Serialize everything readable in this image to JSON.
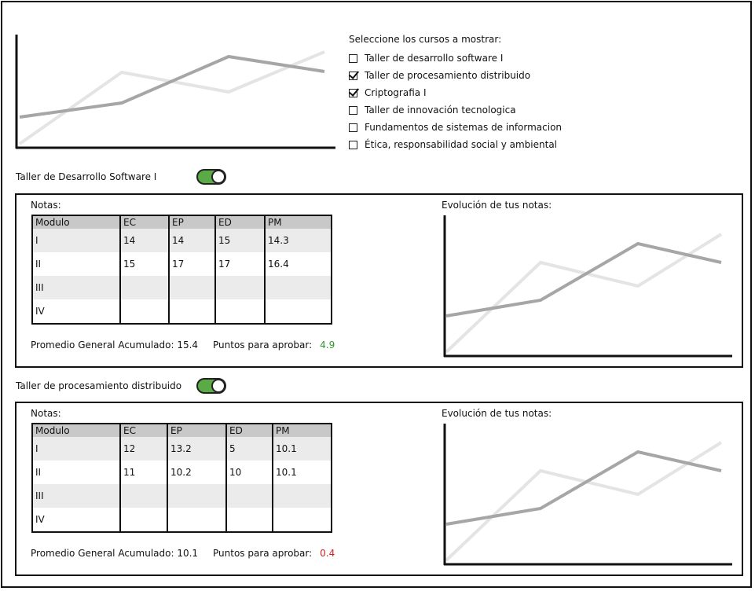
{
  "selector": {
    "title": "Seleccione los cursos a mostrar:",
    "options": [
      {
        "label": "Taller de desarrollo software I",
        "checked": false
      },
      {
        "label": "Taller de procesamiento distribuido",
        "checked": true
      },
      {
        "label": "Criptografia I",
        "checked": true
      },
      {
        "label": "Taller de innovación tecnologica",
        "checked": false
      },
      {
        "label": "Fundamentos de sistemas de informacion",
        "checked": false
      },
      {
        "label": "Ética, responsabilidad social y ambiental",
        "checked": false
      }
    ]
  },
  "courses": [
    {
      "title": "Taller de Desarrollo Software I",
      "toggle_on": true,
      "notes_label": "Notas:",
      "chart_label": "Evolución de tus notas:",
      "columns": [
        "Modulo",
        "EC",
        "EP",
        "ED",
        "PM"
      ],
      "rows": [
        [
          "I",
          "14",
          "14",
          "15",
          "14.3"
        ],
        [
          "II",
          "15",
          "17",
          "17",
          "16.4"
        ],
        [
          "III",
          "",
          "",
          "",
          ""
        ],
        [
          "IV",
          "",
          "",
          "",
          ""
        ]
      ],
      "average_label": "Promedio General Acumulado: 15.4",
      "points_label": "Puntos para aprobar:",
      "points_value": "4.9",
      "points_color": "#2e9a2e"
    },
    {
      "title": "Taller de procesamiento distribuido",
      "toggle_on": true,
      "notes_label": "Notas:",
      "chart_label": "Evolución de tus notas:",
      "columns": [
        "Modulo",
        "EC",
        "EP",
        "ED",
        "PM"
      ],
      "rows": [
        [
          "I",
          "12",
          "13.2",
          "5",
          "10.1"
        ],
        [
          "II",
          "11",
          "10.2",
          "10",
          "10.1"
        ],
        [
          "III",
          "",
          "",
          "",
          ""
        ],
        [
          "IV",
          "",
          "",
          "",
          ""
        ]
      ],
      "average_label": "Promedio General Acumulado: 10.1",
      "points_label": "Puntos para aprobar:",
      "points_value": "0.4",
      "points_color": "#d22020"
    }
  ],
  "colors": {
    "toggle_on": "#5aaa45",
    "table_header": "#c8c8c8",
    "table_row_shade": "#ebebeb",
    "chart_line_dark": "#a6a6a6",
    "chart_line_light": "#e4e4e4"
  }
}
